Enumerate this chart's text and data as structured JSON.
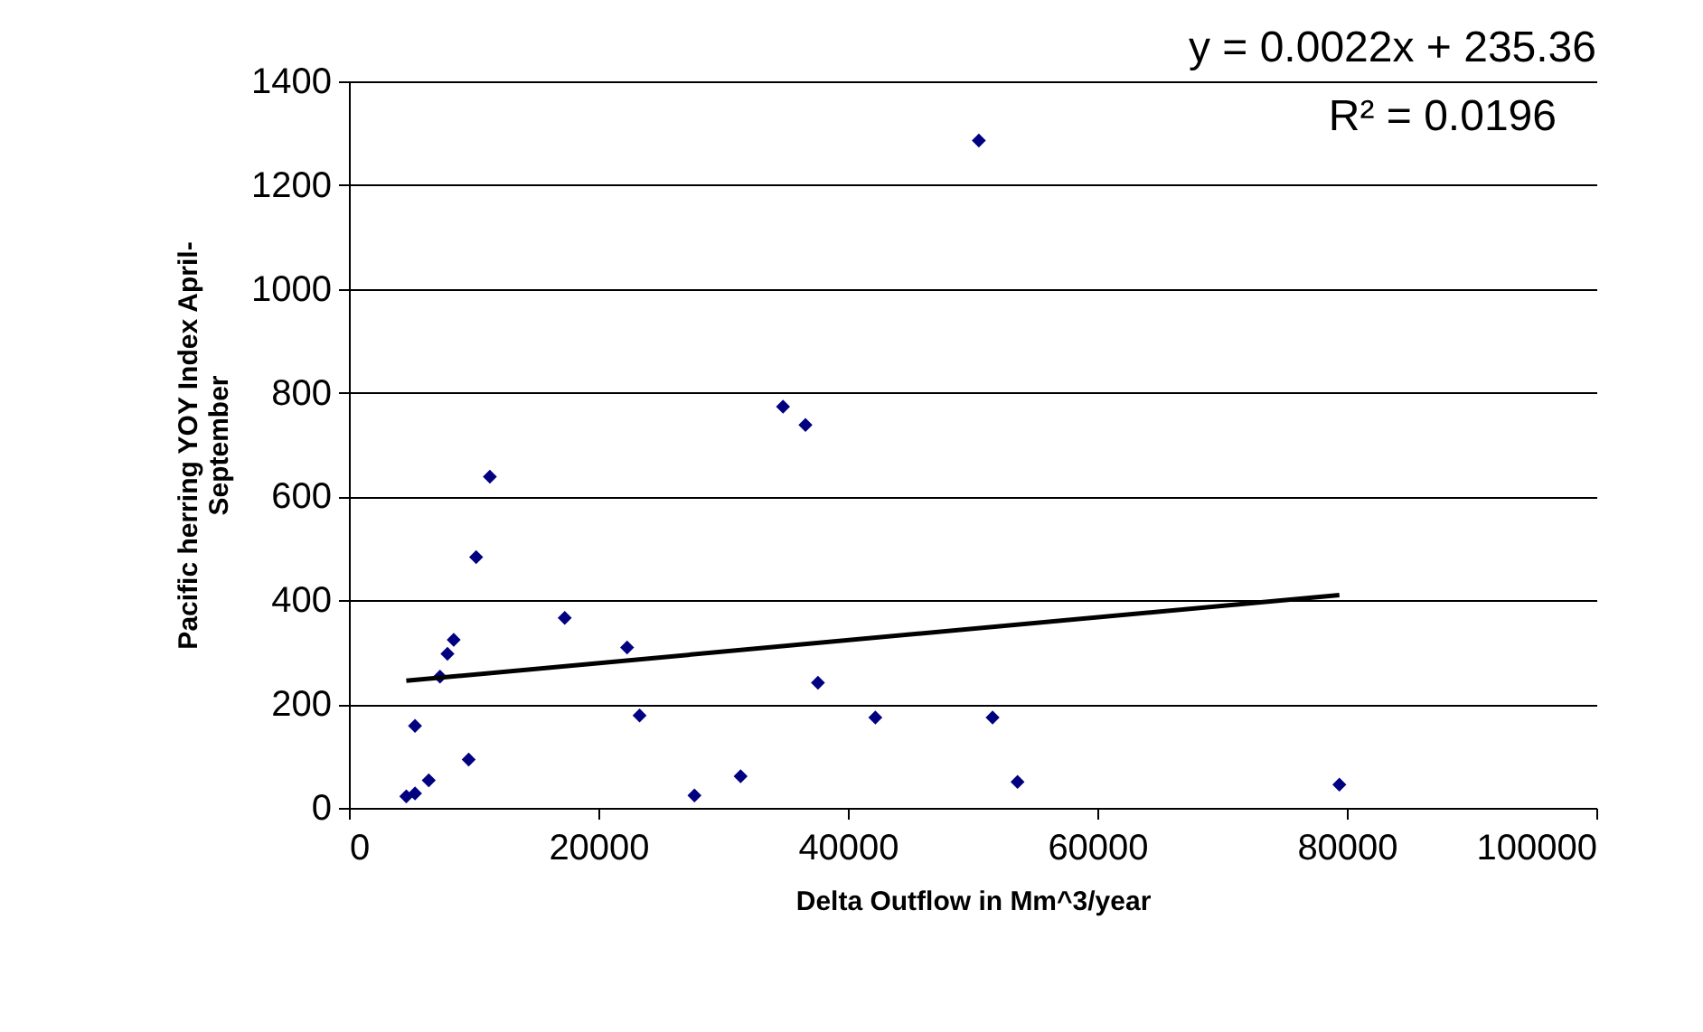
{
  "chart_data": {
    "type": "scatter",
    "xlabel": "Delta Outflow in Mm^3/year",
    "ylabel": "Pacific herring YOY Index April-September",
    "xlim": [
      0,
      100000
    ],
    "xticks": [
      0,
      20000,
      40000,
      60000,
      80000,
      100000
    ],
    "ylim": [
      0,
      1400
    ],
    "yticks": [
      0,
      200,
      400,
      600,
      800,
      1000,
      1200,
      1400
    ],
    "grid": "y",
    "annotations": [
      "y = 0.0022x + 235.36",
      "R² = 0.0196"
    ],
    "series": [
      {
        "color": "#000080",
        "marker": "diamond",
        "x": [
          4600,
          5300,
          5300,
          6400,
          7300,
          7900,
          8400,
          9600,
          10200,
          11300,
          17300,
          22300,
          23300,
          27700,
          31400,
          34800,
          36600,
          37600,
          42200,
          50500,
          51600,
          53600,
          79400
        ],
        "values": [
          22,
          28,
          158,
          53,
          253,
          297,
          324,
          93,
          483,
          638,
          366,
          309,
          178,
          24,
          61,
          773,
          738,
          241,
          174,
          1286,
          174,
          50,
          45
        ]
      },
      {
        "type": "line",
        "color": "#000000",
        "x": [
          4600,
          79400
        ],
        "values": [
          245,
          410
        ]
      }
    ]
  }
}
